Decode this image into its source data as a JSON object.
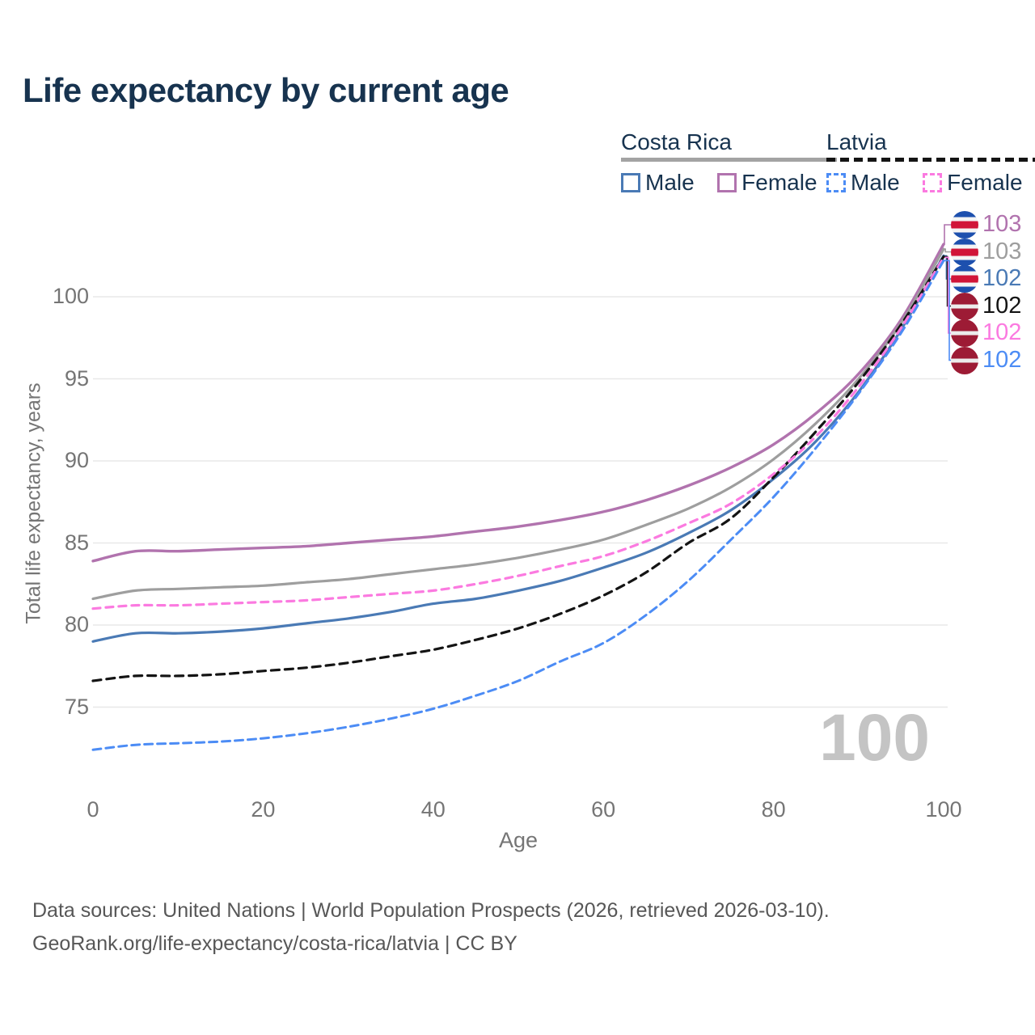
{
  "title": "Life expectancy by current age",
  "watermark": "100",
  "xlabel": "Age",
  "ylabel": "Total life expectancy, years",
  "footer_line1": "Data sources: United Nations | World Population Prospects (2026, retrieved 2026-03-10).",
  "footer_line2": "GeoRank.org/life-expectancy/costa-rica/latvia | CC BY",
  "legend": {
    "groups": [
      {
        "label": "Costa Rica",
        "underline_style": "solid",
        "underline_color": "#a3a3a3",
        "items": [
          {
            "label": "Male",
            "color": "#4a7ab5",
            "dashed": false
          },
          {
            "label": "Female",
            "color": "#b173ae",
            "dashed": false
          }
        ]
      },
      {
        "label": "Latvia",
        "underline_style": "dashed",
        "underline_color": "#141414",
        "items": [
          {
            "label": "Male",
            "color": "#4c8cf5",
            "dashed": true
          },
          {
            "label": "Female",
            "color": "#fb7ae0",
            "dashed": true
          }
        ]
      }
    ]
  },
  "chart_data": {
    "type": "line",
    "title": "Life expectancy by current age",
    "xlabel": "Age",
    "ylabel": "Total life expectancy, years",
    "x": [
      0,
      5,
      10,
      15,
      20,
      25,
      30,
      35,
      40,
      45,
      50,
      55,
      60,
      65,
      70,
      75,
      80,
      85,
      90,
      95,
      100
    ],
    "xticks": [
      0,
      20,
      40,
      60,
      80,
      100
    ],
    "yticks": [
      75,
      80,
      85,
      90,
      95,
      100
    ],
    "xlim": [
      0,
      100
    ],
    "ylim": [
      71,
      104
    ],
    "grid": "horizontal",
    "legend_position": "top-right",
    "series": [
      {
        "name": "Costa Rica Female",
        "country": "Costa Rica",
        "flag": "cr",
        "color": "#b173ae",
        "dash": null,
        "width": 3.4,
        "end_label": "103",
        "values": [
          83.9,
          84.5,
          84.5,
          84.6,
          84.7,
          84.8,
          85.0,
          85.2,
          85.4,
          85.7,
          86.0,
          86.4,
          86.9,
          87.6,
          88.5,
          89.6,
          91.0,
          92.9,
          95.3,
          98.6,
          103.2
        ]
      },
      {
        "name": "Costa Rica All",
        "country": "Costa Rica",
        "flag": "cr",
        "color": "#9e9e9e",
        "dash": null,
        "width": 3.2,
        "end_label": "103",
        "values": [
          81.6,
          82.1,
          82.2,
          82.3,
          82.4,
          82.6,
          82.8,
          83.1,
          83.4,
          83.7,
          84.1,
          84.6,
          85.2,
          86.1,
          87.1,
          88.4,
          90.1,
          92.3,
          95.0,
          98.4,
          102.9
        ]
      },
      {
        "name": "Costa Rica Male",
        "country": "Costa Rica",
        "flag": "cr",
        "color": "#4a7ab5",
        "dash": null,
        "width": 3.2,
        "end_label": "102",
        "values": [
          79.0,
          79.5,
          79.5,
          79.6,
          79.8,
          80.1,
          80.4,
          80.8,
          81.3,
          81.6,
          82.1,
          82.7,
          83.5,
          84.4,
          85.6,
          87.0,
          88.9,
          91.2,
          94.2,
          98.0,
          102.5
        ]
      },
      {
        "name": "Latvia All",
        "country": "Latvia",
        "flag": "lv",
        "color": "#141414",
        "dash": "10 7",
        "width": 3.2,
        "end_label": "102",
        "values": [
          76.6,
          76.9,
          76.9,
          77.0,
          77.2,
          77.4,
          77.7,
          78.1,
          78.5,
          79.1,
          79.8,
          80.7,
          81.8,
          83.2,
          85.0,
          86.5,
          89.0,
          91.8,
          94.8,
          98.3,
          102.45
        ]
      },
      {
        "name": "Latvia Female",
        "country": "Latvia",
        "flag": "lv",
        "color": "#fb7ae0",
        "dash": "9 7",
        "width": 3.2,
        "end_label": "102",
        "values": [
          81.0,
          81.2,
          81.2,
          81.3,
          81.4,
          81.5,
          81.7,
          81.9,
          82.1,
          82.5,
          83.0,
          83.6,
          84.2,
          85.1,
          86.2,
          87.4,
          89.2,
          91.5,
          94.5,
          98.1,
          102.4
        ]
      },
      {
        "name": "Latvia Male",
        "country": "Latvia",
        "flag": "lv",
        "color": "#4c8cf5",
        "dash": "10 6",
        "width": 3.0,
        "end_label": "102",
        "values": [
          72.4,
          72.7,
          72.8,
          72.9,
          73.1,
          73.4,
          73.8,
          74.3,
          74.9,
          75.7,
          76.6,
          77.8,
          78.9,
          80.6,
          82.7,
          85.2,
          87.8,
          90.8,
          94.1,
          97.8,
          102.2
        ]
      }
    ]
  }
}
